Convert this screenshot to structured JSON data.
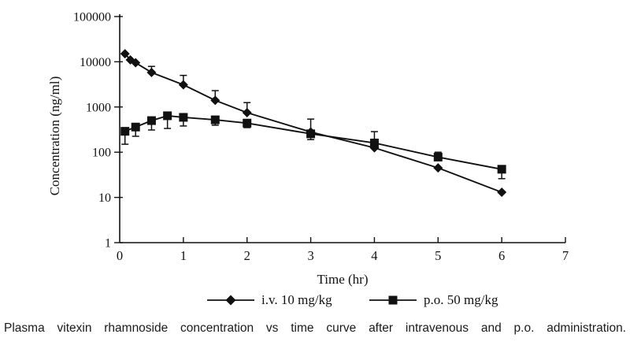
{
  "figure_caption": "Plasma vitexin rhamnoside concentration vs time curve after intravenous and p.o. administration.",
  "colors": {
    "ink": "#111111",
    "axis": "#2a2a2a"
  },
  "chart_data": {
    "type": "line",
    "title": "",
    "xlabel": "Time (hr)",
    "ylabel": "Concentration (ng/ml)",
    "x_scale": "linear",
    "y_scale": "log",
    "xlim": [
      0,
      7
    ],
    "ylim": [
      1,
      100000
    ],
    "x_ticks": [
      0,
      1,
      2,
      3,
      4,
      5,
      6,
      7
    ],
    "y_ticks": [
      1,
      10,
      100,
      1000,
      10000,
      100000
    ],
    "grid": false,
    "legend_position": "bottom",
    "series": [
      {
        "name": "i.v. 10 mg/kg",
        "marker": "diamond",
        "color": "#111111",
        "points": [
          {
            "t": 0.083,
            "y": 15000
          },
          {
            "t": 0.167,
            "y": 11000
          },
          {
            "t": 0.25,
            "y": 9500
          },
          {
            "t": 0.5,
            "y": 5800,
            "hi": 7900
          },
          {
            "t": 1,
            "y": 3100,
            "hi": 5000
          },
          {
            "t": 1.5,
            "y": 1400,
            "hi": 2300
          },
          {
            "t": 2,
            "y": 750,
            "hi": 1250
          },
          {
            "t": 3,
            "y": 280,
            "hi": 540,
            "lo": 190
          },
          {
            "t": 4,
            "y": 125
          },
          {
            "t": 5,
            "y": 45
          },
          {
            "t": 6,
            "y": 13
          }
        ]
      },
      {
        "name": "p.o. 50 mg/kg",
        "marker": "square",
        "color": "#111111",
        "points": [
          {
            "t": 0.083,
            "y": 290,
            "lo": 150
          },
          {
            "t": 0.25,
            "y": 360,
            "lo": 225
          },
          {
            "t": 0.5,
            "y": 500,
            "lo": 310
          },
          {
            "t": 0.75,
            "y": 640,
            "lo": 335
          },
          {
            "t": 1,
            "y": 590,
            "lo": 380
          },
          {
            "t": 1.5,
            "y": 520,
            "lo": 395
          },
          {
            "t": 2,
            "y": 440,
            "lo": 350
          },
          {
            "t": 3,
            "y": 255
          },
          {
            "t": 4,
            "y": 160,
            "hi": 285
          },
          {
            "t": 5,
            "y": 78,
            "hi": 100
          },
          {
            "t": 6,
            "y": 42,
            "lo": 26
          }
        ]
      }
    ]
  }
}
